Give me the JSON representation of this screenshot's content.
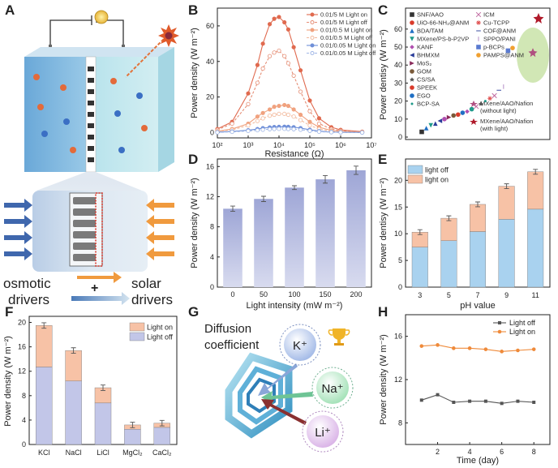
{
  "panels": {
    "A": {
      "label": "A",
      "osmotic": "osmotic",
      "drivers1": "drivers",
      "solar": "solar",
      "drivers2": "drivers",
      "plus": "+"
    },
    "B": {
      "label": "B"
    },
    "C": {
      "label": "C"
    },
    "D": {
      "label": "D"
    },
    "E": {
      "label": "E"
    },
    "F": {
      "label": "F"
    },
    "G": {
      "label": "G",
      "title1": "Diffusion",
      "title2": "coefficient",
      "ions": [
        "K⁺",
        "Na⁺",
        "Li⁺"
      ]
    },
    "H": {
      "label": "H"
    }
  },
  "chart_data": [
    {
      "id": "B",
      "type": "line",
      "title": "",
      "xlabel": "Resistance (Ω)",
      "ylabel": "Power density (W m⁻²)",
      "xscale": "log",
      "xlim": [
        100,
        10000000
      ],
      "ylim": [
        -3,
        70
      ],
      "xticks": [
        "10²",
        "10³",
        "10⁴",
        "10⁵",
        "10⁶",
        "10⁷"
      ],
      "yticks": [
        0,
        20,
        40,
        60
      ],
      "x": [
        100,
        300,
        1000,
        2000,
        3000,
        5000,
        7000,
        10000,
        15000,
        20000,
        30000,
        50000,
        100000,
        200000,
        500000,
        1000000,
        5000000
      ],
      "series": [
        {
          "name": "0.01/5 M Light on",
          "color": "#e06a4f",
          "dash": false,
          "values": [
            2,
            6,
            22,
            38,
            50,
            61,
            64,
            65,
            62,
            58,
            48,
            35,
            18,
            8,
            3,
            1.5,
            0.5
          ]
        },
        {
          "name": "0.01/5 M Light off",
          "color": "#e58d74",
          "dash": true,
          "values": [
            1.5,
            5,
            16,
            28,
            36,
            43,
            45,
            46,
            43,
            39,
            32,
            23,
            12,
            5,
            2,
            1,
            0.3
          ]
        },
        {
          "name": "0.01/0.5 M Light on",
          "color": "#f0a27f",
          "dash": false,
          "values": [
            0.8,
            2,
            5,
            9,
            11,
            13,
            14.5,
            15,
            15.5,
            15,
            13,
            10,
            6,
            3,
            1.2,
            0.6,
            0.2
          ]
        },
        {
          "name": "0.01/0.5 M Light off",
          "color": "#f2b99c",
          "dash": true,
          "values": [
            0.6,
            1.5,
            4,
            6.5,
            8,
            9.5,
            10,
            10.5,
            10.5,
            10,
            9,
            7,
            4,
            2,
            0.8,
            0.4,
            0.1
          ]
        },
        {
          "name": "0.01/0.05 M Light on",
          "color": "#6f8fd8",
          "dash": false,
          "values": [
            0.2,
            0.6,
            1.3,
            2,
            2.5,
            2.9,
            3.1,
            3.2,
            3.3,
            3.2,
            3,
            2.5,
            1.6,
            0.8,
            0.3,
            0.15,
            0.05
          ]
        },
        {
          "name": "0.01/0.05 M Light off",
          "color": "#9fb6e6",
          "dash": true,
          "values": [
            0.1,
            0.4,
            0.9,
            1.3,
            1.6,
            1.9,
            2,
            2.1,
            2.1,
            2,
            1.9,
            1.6,
            1,
            0.5,
            0.2,
            0.1,
            0.03
          ]
        }
      ]
    },
    {
      "id": "C",
      "type": "scatter",
      "xlabel": "",
      "ylabel": "Power dentisy (W m⁻²)",
      "ylim": [
        0,
        70
      ],
      "yticks": [
        0,
        10,
        20,
        30,
        40,
        50,
        60
      ],
      "legend_left": [
        {
          "name": "SNF/AAO",
          "color": "#333333",
          "marker": "square"
        },
        {
          "name": "UiO-66-NH₂@ANM",
          "color": "#d93b2b",
          "marker": "circle"
        },
        {
          "name": "BDA/TAM",
          "color": "#1f6fc4",
          "marker": "triangle"
        },
        {
          "name": "MXene/PS-b-P2VP",
          "color": "#1f9a8a",
          "marker": "tri-down"
        },
        {
          "name": "KANF",
          "color": "#b04fb0",
          "marker": "diamond"
        },
        {
          "name": "BHMXM",
          "color": "#2a3d9a",
          "marker": "tri-left"
        },
        {
          "name": "MoS₂",
          "color": "#8a2a5a",
          "marker": "tri-right"
        },
        {
          "name": "GOM",
          "color": "#7a5a3a",
          "marker": "hexagon"
        },
        {
          "name": "CS/SA",
          "color": "#555555",
          "marker": "star"
        },
        {
          "name": "SPEEK",
          "color": "#d93b2b",
          "marker": "pentagon"
        },
        {
          "name": "EGO",
          "color": "#1f6fc4",
          "marker": "circle"
        },
        {
          "name": "BCP-SA",
          "color": "#1f9a8a",
          "marker": "dot"
        }
      ],
      "legend_right": [
        {
          "name": "ICM",
          "color": "#c06aa0",
          "marker": "x"
        },
        {
          "name": "Cu-TCPP",
          "color": "#e05050",
          "marker": "asterisk"
        },
        {
          "name": "COF@ANM",
          "color": "#5a6ab0",
          "marker": "dash"
        },
        {
          "name": "SPPO/PANI",
          "color": "#c0a0d0",
          "marker": "vbar"
        },
        {
          "name": "p-BCPs",
          "color": "#5a7ad0",
          "marker": "square"
        },
        {
          "name": "PAMPS@ANM",
          "color": "#f0a030",
          "marker": "circle"
        }
      ],
      "highlight": [
        {
          "name": "MXene/AAO/Nafion (without light)",
          "color": "#b05080"
        },
        {
          "name": "MXene/AAO/Nafion (with light)",
          "color": "#b01a2a"
        }
      ],
      "highlight_lines": [
        "MXene/AAO/Nafion",
        "(without light)",
        "MXene/AAO/Nafion",
        "(with light)"
      ],
      "values": [
        2.9,
        5,
        6.5,
        7.5,
        9,
        10,
        11,
        12,
        12.5,
        13.5,
        14.2,
        15.5,
        17,
        18.5,
        20,
        21.5,
        23,
        26,
        28,
        48,
        49.5,
        47,
        66
      ]
    },
    {
      "id": "D",
      "type": "bar",
      "xlabel": "Light intensity (mW m⁻²)",
      "ylabel": "Power density (W m⁻²)",
      "categories": [
        "0",
        "50",
        "100",
        "150",
        "200"
      ],
      "values": [
        10.4,
        11.7,
        13.2,
        14.3,
        15.5
      ],
      "errors": [
        0.35,
        0.35,
        0.25,
        0.5,
        0.55
      ],
      "ylim": [
        0,
        17
      ],
      "yticks": [
        0,
        4,
        8,
        12,
        16
      ]
    },
    {
      "id": "E",
      "type": "bar",
      "xlabel": "pH value",
      "ylabel": "Power dentisy (W m⁻²)",
      "categories": [
        "3",
        "5",
        "7",
        "9",
        "11"
      ],
      "series": [
        {
          "name": "light off",
          "color": "#a9d2ef",
          "values": [
            7.5,
            8.7,
            10.4,
            12.7,
            14.6
          ]
        },
        {
          "name": "light on",
          "color": "#f7c2a6",
          "values": [
            2.8,
            4.2,
            5.1,
            6.2,
            7
          ]
        }
      ],
      "totals": [
        10.3,
        12.9,
        15.5,
        18.9,
        21.6
      ],
      "ylim": [
        0,
        24
      ],
      "yticks": [
        0,
        5,
        10,
        15,
        20
      ]
    },
    {
      "id": "F",
      "type": "bar",
      "xlabel": "",
      "ylabel": "Power density (W m⁻²)",
      "categories": [
        "KCl",
        "NaCl",
        "LiCl",
        "MgCl₂",
        "CaCl₂"
      ],
      "series": [
        {
          "name": "Light off",
          "color": "#c2c6e8",
          "values": [
            12.7,
            10.4,
            6.8,
            2.5,
            2.8
          ]
        },
        {
          "name": "Light on",
          "color": "#f7c2a6",
          "values": [
            6.8,
            5,
            2.5,
            0.7,
            0.7
          ]
        }
      ],
      "totals": [
        19.5,
        15.4,
        9.3,
        3.2,
        3.5
      ],
      "ylim": [
        0,
        21
      ],
      "yticks": [
        0,
        4,
        8,
        12,
        16,
        20
      ]
    },
    {
      "id": "H",
      "type": "line",
      "xlabel": "Time (day)",
      "ylabel": "Power density (W m⁻²)",
      "x": [
        1,
        2,
        3,
        4,
        5,
        6,
        7,
        8
      ],
      "series": [
        {
          "name": "Light off",
          "color": "#555555",
          "values": [
            10.1,
            10.6,
            9.9,
            10,
            10,
            9.8,
            10,
            9.9
          ]
        },
        {
          "name": "Light on",
          "color": "#ef8a3a",
          "values": [
            15.1,
            15.2,
            14.9,
            14.9,
            14.8,
            14.6,
            14.7,
            14.8
          ]
        }
      ],
      "xlim": [
        0,
        9
      ],
      "ylim": [
        6,
        18
      ],
      "xticks": [
        2,
        4,
        6,
        8
      ],
      "yticks": [
        8,
        12,
        16
      ]
    }
  ]
}
